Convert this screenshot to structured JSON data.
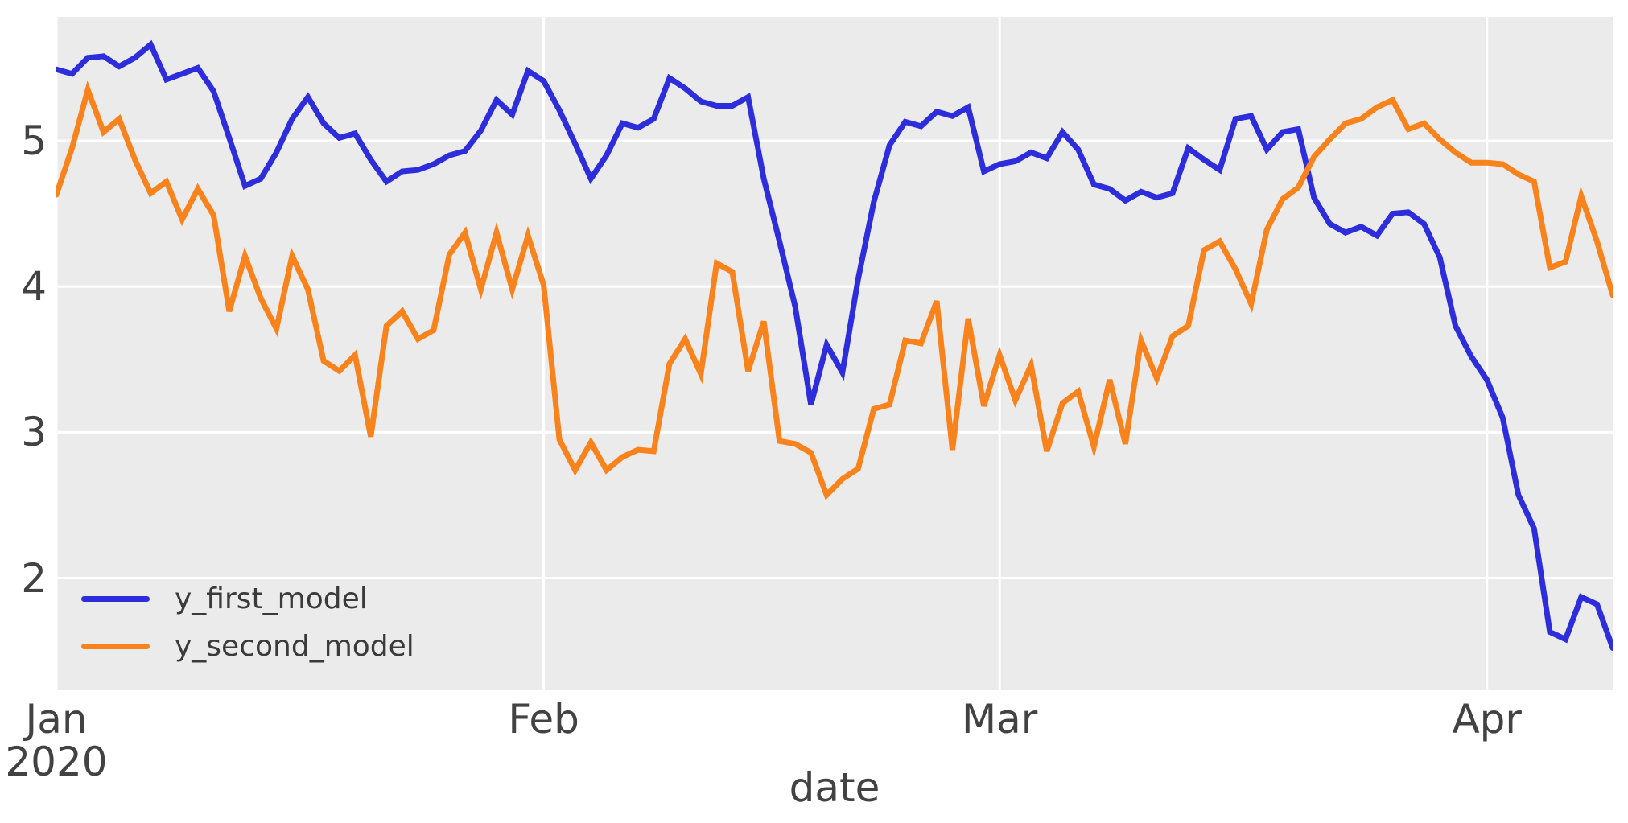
{
  "figure": {
    "background_color": "#ffffff",
    "plot_background_color": "#ebebeb",
    "grid_color": "#ffffff",
    "tick_label_color": "#424242",
    "legend_label_color": "#3a3a3a"
  },
  "chart_data": {
    "type": "line",
    "title": "",
    "xlabel": "date",
    "ylabel": "",
    "grid": true,
    "legend_position": "lower left",
    "y_ticks": [
      2,
      3,
      4,
      5
    ],
    "ylim": [
      1.23,
      5.85
    ],
    "x_tick_labels": [
      "Jan\n2020",
      "Feb",
      "Mar",
      "Apr"
    ],
    "x_tick_days": [
      0,
      31,
      60,
      91
    ],
    "x_range_dates": [
      "2020-01-01",
      "2020-04-09"
    ],
    "dates": [
      "2020-01-01",
      "2020-01-02",
      "2020-01-03",
      "2020-01-04",
      "2020-01-05",
      "2020-01-06",
      "2020-01-07",
      "2020-01-08",
      "2020-01-09",
      "2020-01-10",
      "2020-01-11",
      "2020-01-12",
      "2020-01-13",
      "2020-01-14",
      "2020-01-15",
      "2020-01-16",
      "2020-01-17",
      "2020-01-18",
      "2020-01-19",
      "2020-01-20",
      "2020-01-21",
      "2020-01-22",
      "2020-01-23",
      "2020-01-24",
      "2020-01-25",
      "2020-01-26",
      "2020-01-27",
      "2020-01-28",
      "2020-01-29",
      "2020-01-30",
      "2020-01-31",
      "2020-02-01",
      "2020-02-02",
      "2020-02-03",
      "2020-02-04",
      "2020-02-05",
      "2020-02-06",
      "2020-02-07",
      "2020-02-08",
      "2020-02-09",
      "2020-02-10",
      "2020-02-11",
      "2020-02-12",
      "2020-02-13",
      "2020-02-14",
      "2020-02-15",
      "2020-02-16",
      "2020-02-17",
      "2020-02-18",
      "2020-02-19",
      "2020-02-20",
      "2020-02-21",
      "2020-02-22",
      "2020-02-23",
      "2020-02-24",
      "2020-02-25",
      "2020-02-26",
      "2020-02-27",
      "2020-02-28",
      "2020-02-29",
      "2020-03-01",
      "2020-03-02",
      "2020-03-03",
      "2020-03-04",
      "2020-03-05",
      "2020-03-06",
      "2020-03-07",
      "2020-03-08",
      "2020-03-09",
      "2020-03-10",
      "2020-03-11",
      "2020-03-12",
      "2020-03-13",
      "2020-03-14",
      "2020-03-15",
      "2020-03-16",
      "2020-03-17",
      "2020-03-18",
      "2020-03-19",
      "2020-03-20",
      "2020-03-21",
      "2020-03-22",
      "2020-03-23",
      "2020-03-24",
      "2020-03-25",
      "2020-03-26",
      "2020-03-27",
      "2020-03-28",
      "2020-03-29",
      "2020-03-30",
      "2020-03-31",
      "2020-04-01",
      "2020-04-02",
      "2020-04-03",
      "2020-04-04",
      "2020-04-05",
      "2020-04-06",
      "2020-04-07",
      "2020-04-08",
      "2020-04-09"
    ],
    "series": [
      {
        "name": "y_first_model",
        "color": "#2d2ddc",
        "values": [
          5.49,
          5.46,
          5.57,
          5.58,
          5.51,
          5.57,
          5.66,
          5.42,
          5.46,
          5.5,
          5.34,
          5.02,
          4.69,
          4.74,
          4.92,
          5.15,
          5.3,
          5.12,
          5.02,
          5.05,
          4.87,
          4.72,
          4.79,
          4.8,
          4.84,
          4.9,
          4.93,
          5.07,
          5.28,
          5.18,
          5.48,
          5.41,
          5.21,
          4.98,
          4.74,
          4.9,
          5.12,
          5.09,
          5.15,
          5.43,
          5.36,
          5.27,
          5.24,
          5.24,
          5.3,
          4.74,
          4.31,
          3.86,
          3.19,
          3.6,
          3.41,
          4.05,
          4.58,
          4.97,
          5.13,
          5.1,
          5.2,
          5.17,
          5.23,
          4.79,
          4.84,
          4.86,
          4.92,
          4.88,
          5.06,
          4.94,
          4.7,
          4.67,
          4.59,
          4.65,
          4.61,
          4.64,
          4.95,
          4.87,
          4.8,
          5.15,
          5.17,
          4.94,
          5.06,
          5.08,
          4.61,
          4.43,
          4.37,
          4.41,
          4.35,
          4.5,
          4.51,
          4.43,
          4.2,
          3.73,
          3.52,
          3.36,
          3.1,
          2.57,
          2.34,
          1.63,
          1.58,
          1.87,
          1.82,
          1.52
        ]
      },
      {
        "name": "y_second_model",
        "color": "#f8821c",
        "values": [
          4.63,
          4.95,
          5.35,
          5.06,
          5.15,
          4.87,
          4.64,
          4.72,
          4.46,
          4.67,
          4.49,
          3.83,
          4.21,
          3.92,
          3.71,
          4.21,
          3.98,
          3.49,
          3.42,
          3.53,
          2.97,
          3.73,
          3.83,
          3.64,
          3.7,
          4.22,
          4.37,
          3.98,
          4.37,
          3.98,
          4.35,
          4.01,
          2.95,
          2.74,
          2.93,
          2.74,
          2.83,
          2.88,
          2.87,
          3.47,
          3.64,
          3.4,
          4.16,
          4.1,
          3.42,
          3.76,
          2.94,
          2.92,
          2.86,
          2.57,
          2.68,
          2.75,
          3.16,
          3.19,
          3.63,
          3.61,
          3.9,
          2.88,
          3.78,
          3.18,
          3.53,
          3.22,
          3.46,
          2.87,
          3.2,
          3.28,
          2.9,
          3.36,
          2.92,
          3.63,
          3.37,
          3.66,
          3.73,
          4.25,
          4.31,
          4.12,
          3.88,
          4.39,
          4.6,
          4.68,
          4.89,
          5.01,
          5.12,
          5.15,
          5.23,
          5.28,
          5.08,
          5.12,
          5.01,
          4.92,
          4.85,
          4.85,
          4.84,
          4.77,
          4.72,
          4.13,
          4.17,
          4.62,
          4.31,
          3.94
        ]
      }
    ]
  }
}
